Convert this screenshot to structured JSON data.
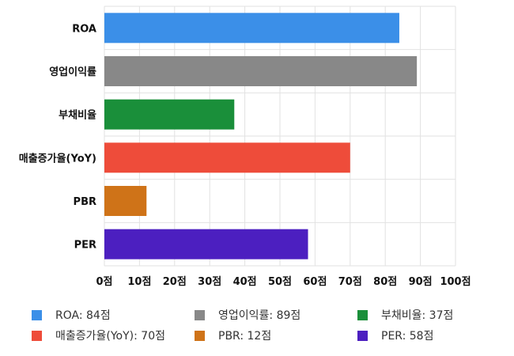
{
  "chart_data": {
    "type": "bar",
    "orientation": "horizontal",
    "categories": [
      "ROA",
      "영업이익률",
      "부채비율",
      "매출증가율(YoY)",
      "PBR",
      "PER"
    ],
    "values": [
      84,
      89,
      37,
      70,
      12,
      58
    ],
    "colors": [
      "#3b8fe8",
      "#888888",
      "#1a8f3a",
      "#ee4c3a",
      "#cf7318",
      "#4c1fc0"
    ],
    "xlim": [
      0,
      100
    ],
    "xticks": [
      0,
      10,
      20,
      30,
      40,
      50,
      60,
      70,
      80,
      90,
      100
    ],
    "tick_suffix": "점",
    "grid": true,
    "legend": {
      "placement": "bottom",
      "items": [
        {
          "label": "ROA: 84점",
          "color": "#3b8fe8"
        },
        {
          "label": "영업이익률: 89점",
          "color": "#888888"
        },
        {
          "label": "부채비율: 37점",
          "color": "#1a8f3a"
        },
        {
          "label": "매출증가율(YoY): 70점",
          "color": "#ee4c3a"
        },
        {
          "label": "PBR: 12점",
          "color": "#cf7318"
        },
        {
          "label": "PER: 58점",
          "color": "#4c1fc0"
        }
      ]
    }
  }
}
